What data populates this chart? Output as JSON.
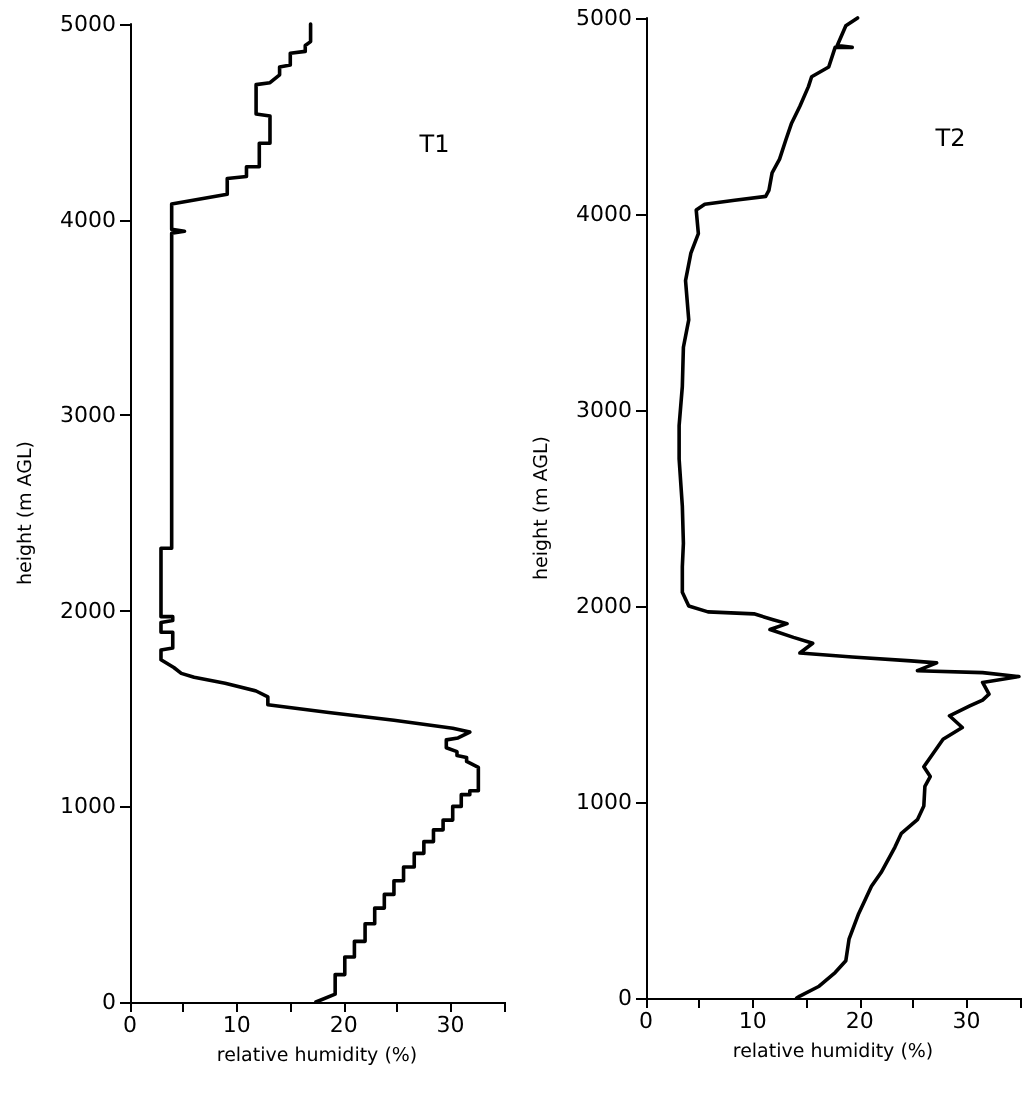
{
  "chart_data": [
    {
      "type": "line",
      "xlabel": "relative humidity (%)",
      "ylabel": "height (m AGL)",
      "annotations": [
        "T1"
      ],
      "color": "#000000",
      "xlim": [
        0,
        35
      ],
      "xticks": [
        0,
        {
          "value": 5,
          "label": null
        },
        10,
        {
          "value": 15,
          "label": null
        },
        20,
        {
          "value": 25,
          "label": null
        },
        30,
        {
          "value": 35,
          "label": null
        }
      ],
      "ylim": [
        0,
        5000
      ],
      "yticks": [
        0,
        1000,
        2000,
        3000,
        4000,
        5000
      ],
      "x": [
        17.4,
        19.2,
        19.2,
        20.1,
        20.1,
        21.0,
        21.0,
        22.0,
        22.0,
        22.9,
        22.9,
        23.8,
        23.8,
        24.7,
        24.7,
        25.6,
        25.6,
        26.6,
        26.6,
        27.5,
        27.5,
        28.4,
        28.4,
        29.3,
        29.3,
        30.2,
        30.2,
        31.0,
        31.0,
        31.8,
        31.8,
        32.6,
        32.6,
        31.5,
        31.5,
        30.6,
        30.6,
        29.6,
        29.6,
        30.7,
        31.8,
        30.2,
        24.7,
        18.6,
        12.9,
        12.9,
        11.8,
        8.9,
        6.0,
        4.8,
        4.1,
        2.9,
        2.9,
        4.0,
        4.0,
        2.9,
        2.9,
        4.0,
        4.0,
        2.9,
        2.9,
        3.9,
        3.9,
        5.1,
        3.9,
        3.9,
        9.1,
        9.1,
        10.9,
        10.9,
        12.1,
        12.1,
        13.1,
        13.1,
        11.8,
        11.8,
        13.1,
        14.0,
        14.0,
        15.0,
        15.0,
        16.4,
        16.4,
        16.9,
        16.9
      ],
      "values": [
        0,
        40,
        140,
        140,
        230,
        230,
        310,
        310,
        400,
        400,
        480,
        480,
        550,
        550,
        620,
        620,
        690,
        690,
        760,
        760,
        820,
        820,
        880,
        880,
        930,
        930,
        1000,
        1000,
        1060,
        1060,
        1080,
        1080,
        1200,
        1230,
        1250,
        1260,
        1280,
        1300,
        1340,
        1350,
        1380,
        1400,
        1440,
        1480,
        1520,
        1560,
        1590,
        1630,
        1660,
        1680,
        1710,
        1750,
        1800,
        1810,
        1890,
        1890,
        1940,
        1950,
        1970,
        1970,
        2320,
        2320,
        3930,
        3940,
        3950,
        4080,
        4130,
        4210,
        4220,
        4270,
        4270,
        4390,
        4390,
        4530,
        4540,
        4690,
        4700,
        4740,
        4780,
        4790,
        4850,
        4860,
        4890,
        4910,
        5000
      ]
    },
    {
      "type": "line",
      "xlabel": "relative humidity (%)",
      "ylabel": "height (m AGL)",
      "annotations": [
        "T2"
      ],
      "color": "#000000",
      "xlim": [
        0,
        35
      ],
      "xticks": [
        0,
        {
          "value": 5,
          "label": null
        },
        10,
        {
          "value": 15,
          "label": null
        },
        20,
        {
          "value": 25,
          "label": null
        },
        30,
        {
          "value": 35,
          "label": null
        }
      ],
      "ylim": [
        0,
        5000
      ],
      "yticks": [
        0,
        1000,
        2000,
        3000,
        4000,
        5000
      ],
      "x": [
        14.1,
        14.4,
        16.2,
        17.7,
        18.7,
        19.0,
        19.9,
        21.1,
        22.0,
        23.3,
        23.9,
        25.4,
        26.0,
        26.1,
        26.6,
        26.0,
        26.9,
        27.8,
        29.6,
        28.4,
        30.3,
        31.5,
        32.1,
        31.5,
        34.9,
        31.5,
        25.4,
        27.2,
        24.8,
        19.3,
        14.4,
        15.6,
        13.8,
        11.6,
        13.2,
        11.9,
        10.1,
        5.8,
        4.0,
        3.4,
        3.4,
        3.5,
        3.4,
        3.1,
        3.1,
        3.4,
        3.5,
        4.0,
        3.7,
        4.2,
        4.9,
        4.7,
        5.5,
        8.3,
        11.2,
        11.5,
        11.8,
        12.5,
        13.1,
        13.6,
        14.4,
        15.2,
        15.5,
        17.1,
        17.7,
        19.3,
        17.9,
        18.7,
        19.8
      ],
      "values": [
        0,
        10,
        60,
        130,
        190,
        300,
        430,
        570,
        640,
        770,
        840,
        910,
        980,
        1080,
        1130,
        1180,
        1250,
        1320,
        1380,
        1440,
        1490,
        1520,
        1550,
        1610,
        1640,
        1660,
        1670,
        1710,
        1720,
        1740,
        1760,
        1810,
        1840,
        1880,
        1910,
        1930,
        1960,
        1970,
        2000,
        2070,
        2200,
        2320,
        2510,
        2750,
        2920,
        3120,
        3320,
        3460,
        3660,
        3800,
        3900,
        4020,
        4050,
        4070,
        4090,
        4120,
        4210,
        4280,
        4380,
        4460,
        4550,
        4650,
        4700,
        4750,
        4850,
        4850,
        4860,
        4960,
        5000
      ]
    }
  ]
}
